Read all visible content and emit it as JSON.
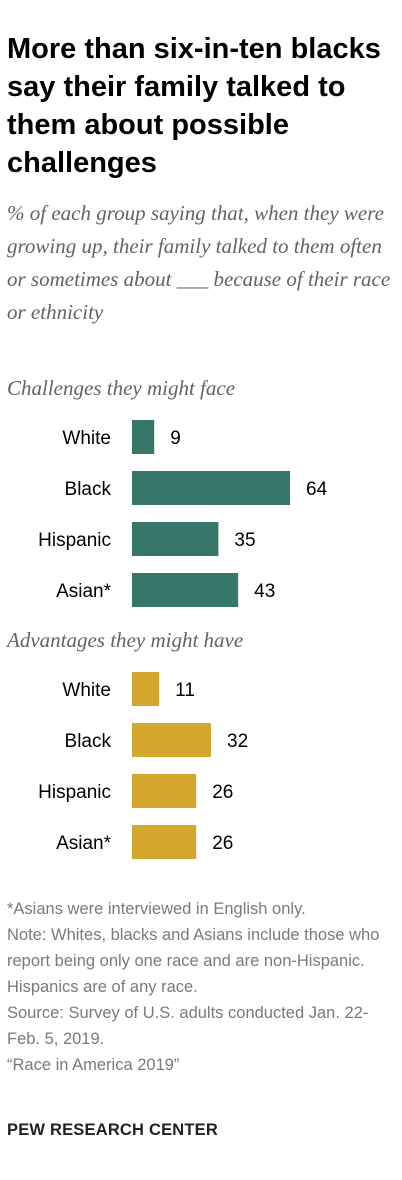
{
  "header": {
    "title": "More than six-in-ten blacks say their family talked to them about possible challenges",
    "subtitle": "% of each group saying that, when they were growing up, their family talked to them often or sometimes about ___ because of their race or ethnicity"
  },
  "chart_data": {
    "type": "bar",
    "orientation": "horizontal",
    "categories": [
      "White",
      "Black",
      "Hispanic",
      "Asian*"
    ],
    "series": [
      {
        "name": "Challenges they might face",
        "color": "#36776a",
        "values": [
          9,
          64,
          35,
          43
        ]
      },
      {
        "name": "Advantages they might have",
        "color": "#d3a72e",
        "values": [
          11,
          32,
          26,
          26
        ]
      }
    ],
    "xlim": [
      0,
      100
    ],
    "grid": false,
    "legend": "none"
  },
  "footer": {
    "note_asian": "*Asians were interviewed in English only.",
    "note_main": "Note: Whites, blacks and Asians include those who report being only one race and are non-Hispanic. Hispanics are of any race.",
    "source": "Source: Survey of U.S. adults conducted Jan. 22-Feb. 5, 2019.",
    "report": "“Race in America 2019”",
    "org": "PEW RESEARCH CENTER"
  }
}
